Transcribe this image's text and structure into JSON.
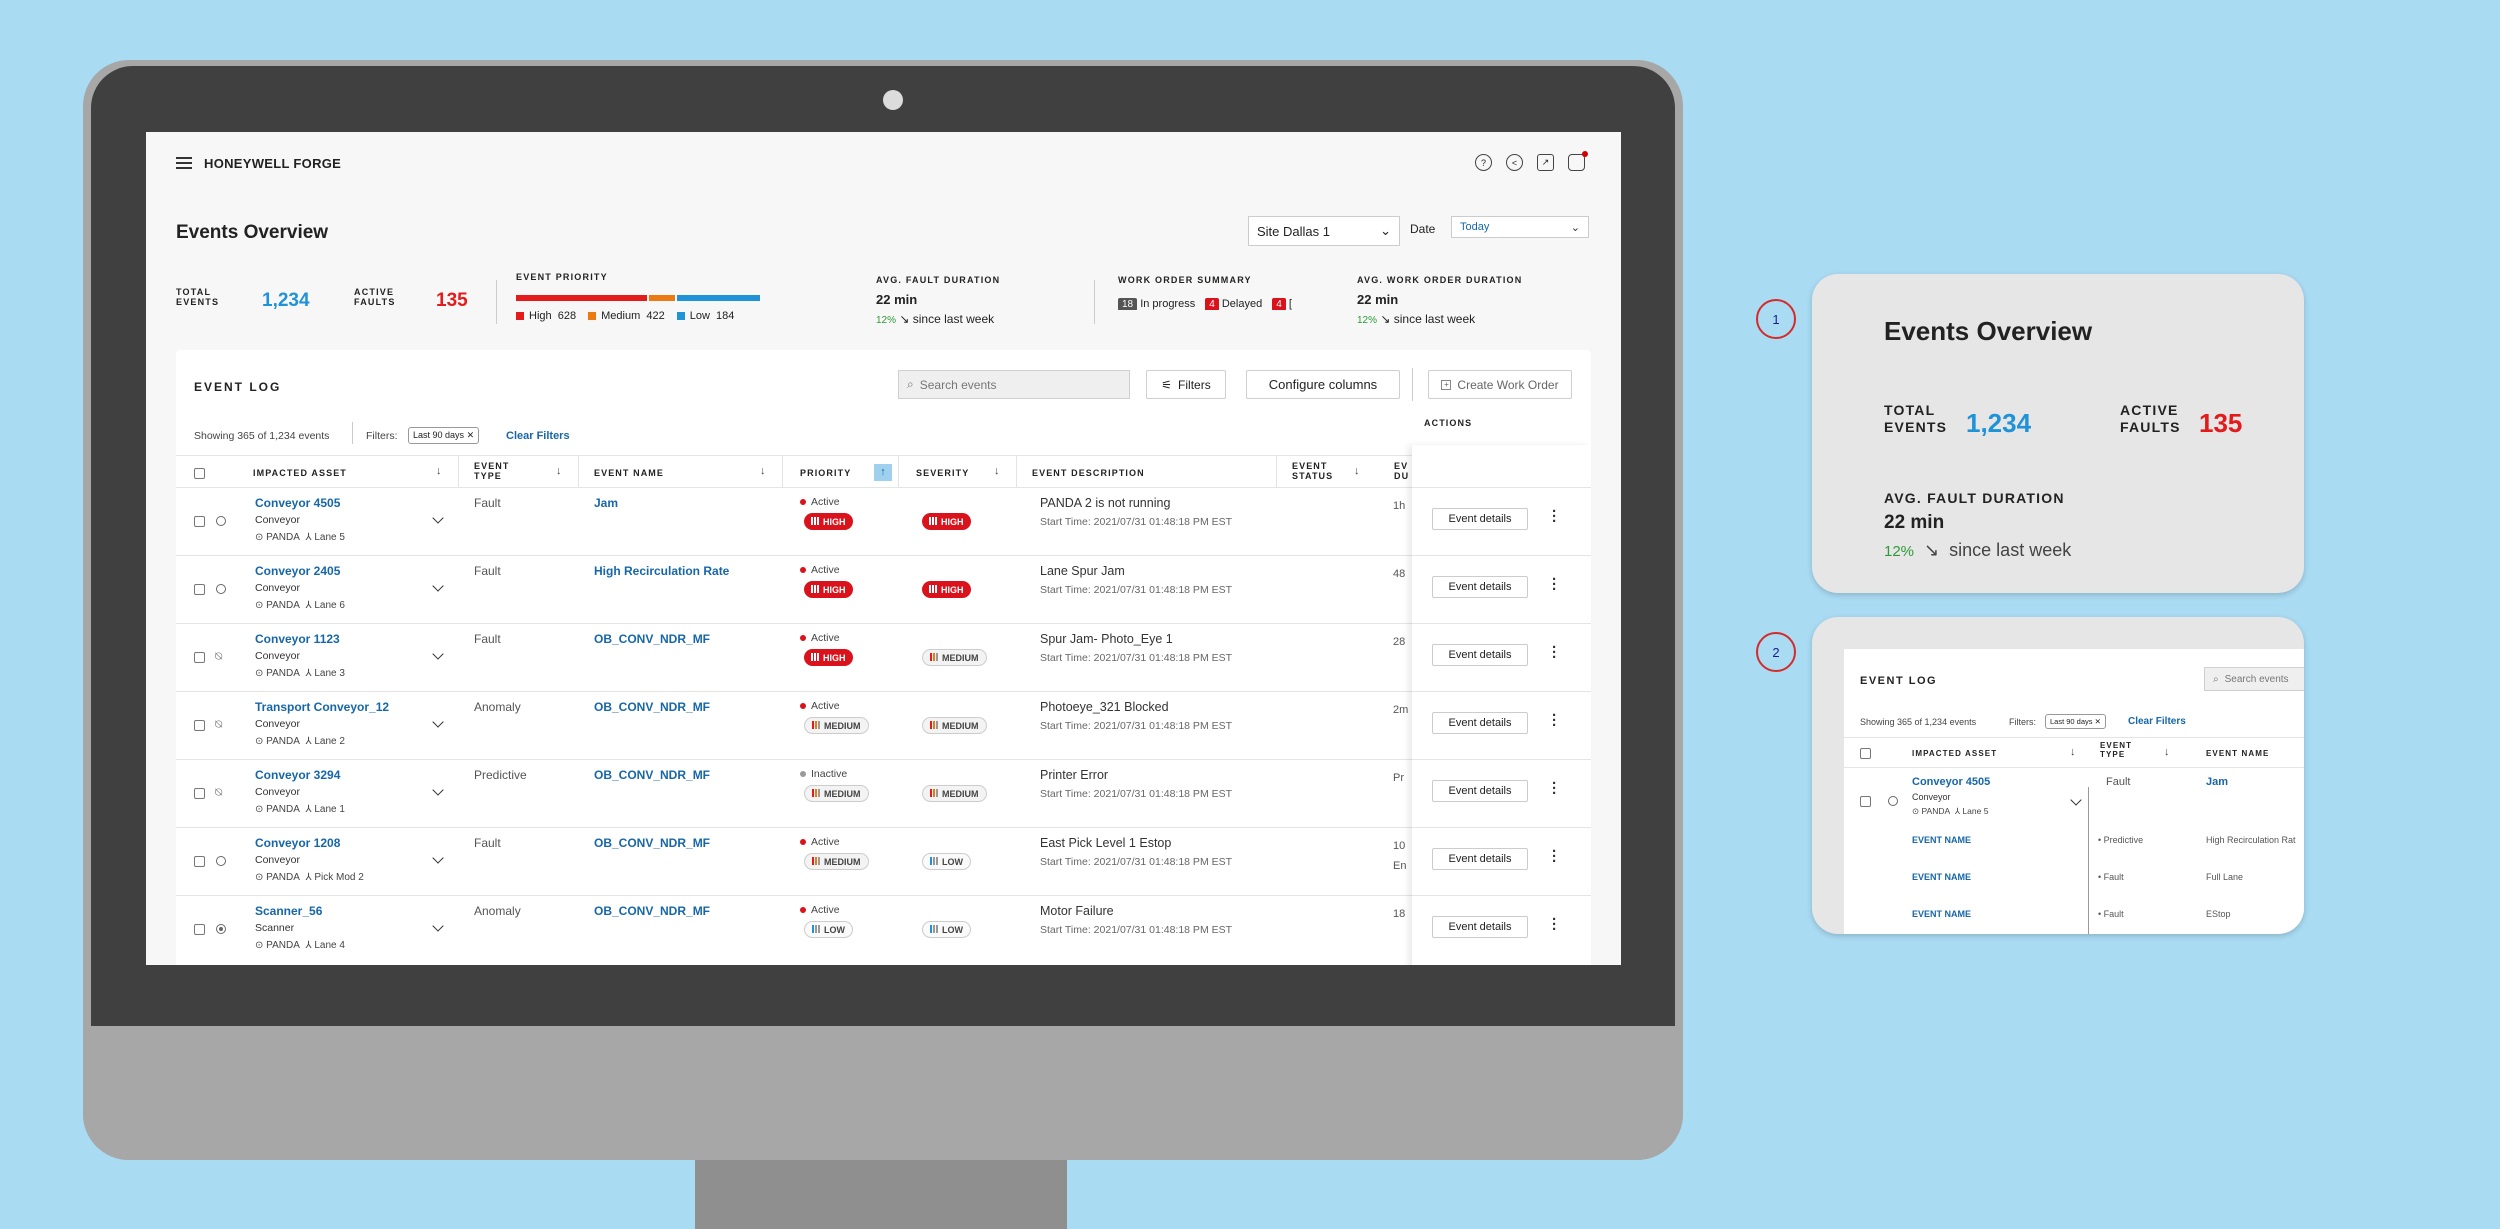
{
  "app": {
    "brand": "HONEYWELL FORGE"
  },
  "overview": {
    "title": "Events Overview",
    "site_select": "Site Dallas 1",
    "date_label": "Date",
    "date_select": "Today",
    "total_events_label": "TOTAL EVENTS",
    "total_events": "1,234",
    "active_faults_label": "ACTIVE FAULTS",
    "active_faults": "135",
    "priority_label": "EVENT PRIORITY",
    "priority": [
      {
        "name": "High",
        "count": "628",
        "color": "#e31b1b"
      },
      {
        "name": "Medium",
        "count": "422",
        "color": "#ec7a12"
      },
      {
        "name": "Low",
        "count": "184",
        "color": "#1f92d8"
      }
    ],
    "fault_duration_label": "AVG. FAULT DURATION",
    "fault_duration": "22 min",
    "fault_change": "12%",
    "fault_change_text": "since last week",
    "wo_summary_label": "WORK ORDER SUMMARY",
    "wo_in_progress_count": "18",
    "wo_in_progress": "In progress",
    "wo_delayed_count": "4",
    "wo_delayed": "Delayed",
    "wo_third_count": "4",
    "wo_third": "[",
    "wo_duration_label": "AVG. WORK ORDER DURATION",
    "wo_duration": "22 min",
    "wo_change": "12%",
    "wo_change_text": "since last week"
  },
  "eventlog": {
    "title": "EVENT LOG",
    "search_placeholder": "Search events",
    "filters_btn": "Filters",
    "configure_btn": "Configure columns",
    "create_btn": "Create Work Order",
    "showing": "Showing 365 of 1,234 events",
    "filters_label": "Filters:",
    "filter_chip": "Last 90 days",
    "clear_filters": "Clear Filters",
    "columns": [
      "IMPACTED ASSET",
      "EVENT TYPE",
      "EVENT NAME",
      "PRIORITY",
      "SEVERITY",
      "EVENT DESCRIPTION",
      "EVENT STATUS",
      "EV DU",
      "ACTIONS"
    ],
    "event_details_btn": "Event details",
    "rows": [
      {
        "asset": "Conveyor 4505",
        "kind": "Conveyor",
        "loc": "PANDA",
        "lane": "Lane 5",
        "type": "Fault",
        "name": "Jam",
        "status": "Active",
        "priority": "HIGH",
        "severity": "HIGH",
        "desc": "PANDA 2 is not running",
        "start": "Start Time: 2021/07/31 01:48:18 PM EST",
        "dur": "1h"
      },
      {
        "asset": "Conveyor 2405",
        "kind": "Conveyor",
        "loc": "PANDA",
        "lane": "Lane 6",
        "type": "Fault",
        "name": "High Recirculation Rate",
        "status": "Active",
        "priority": "HIGH",
        "severity": "HIGH",
        "desc": "Lane Spur Jam",
        "start": "Start Time: 2021/07/31 01:48:18 PM EST",
        "dur": "48"
      },
      {
        "asset": "Conveyor 1123",
        "kind": "Conveyor",
        "loc": "PANDA",
        "lane": "Lane 3",
        "type": "Fault",
        "name": "OB_CONV_NDR_MF",
        "status": "Active",
        "priority": "HIGH",
        "severity": "MEDIUM",
        "desc": "Spur Jam- Photo_Eye 1",
        "start": "Start Time: 2021/07/31 01:48:18 PM EST",
        "dur": "28"
      },
      {
        "asset": "Transport Conveyor_12",
        "kind": "Conveyor",
        "loc": "PANDA",
        "lane": "Lane 2",
        "type": "Anomaly",
        "name": "OB_CONV_NDR_MF",
        "status": "Active",
        "priority": "MEDIUM",
        "severity": "MEDIUM",
        "desc": "Photoeye_321 Blocked",
        "start": "Start Time: 2021/07/31 01:48:18 PM EST",
        "dur": "2m"
      },
      {
        "asset": "Conveyor 3294",
        "kind": "Conveyor",
        "loc": "PANDA",
        "lane": "Lane 1",
        "type": "Predictive",
        "name": "OB_CONV_NDR_MF",
        "status": "Inactive",
        "priority": "MEDIUM",
        "severity": "MEDIUM",
        "desc": "Printer Error",
        "start": "Start Time: 2021/07/31 01:48:18 PM EST",
        "dur": "Pr"
      },
      {
        "asset": "Conveyor 1208",
        "kind": "Conveyor",
        "loc": "PANDA",
        "lane": "Pick Mod 2",
        "type": "Fault",
        "name": "OB_CONV_NDR_MF",
        "status": "Active",
        "priority": "MEDIUM",
        "severity": "LOW",
        "desc": "East Pick Level 1 Estop",
        "start": "Start Time: 2021/07/31 01:48:18 PM EST",
        "dur": "10 En"
      },
      {
        "asset": "Scanner_56",
        "kind": "Scanner",
        "loc": "PANDA",
        "lane": "Lane 4",
        "type": "Anomaly",
        "name": "OB_CONV_NDR_MF",
        "status": "Active",
        "priority": "LOW",
        "severity": "LOW",
        "desc": "Motor Failure",
        "start": "Start Time: 2021/07/31 01:48:18 PM EST",
        "dur": "18"
      }
    ]
  },
  "callouts": {
    "n1": "1",
    "n2": "2",
    "p2_event_name": "EVENT NAME",
    "p2_sub": [
      {
        "type": "Predictive",
        "name": "High Recirculation Rat"
      },
      {
        "type": "Fault",
        "name": "Full Lane"
      },
      {
        "type": "Fault",
        "name": "EStop"
      }
    ],
    "p2_search": "Search events"
  }
}
